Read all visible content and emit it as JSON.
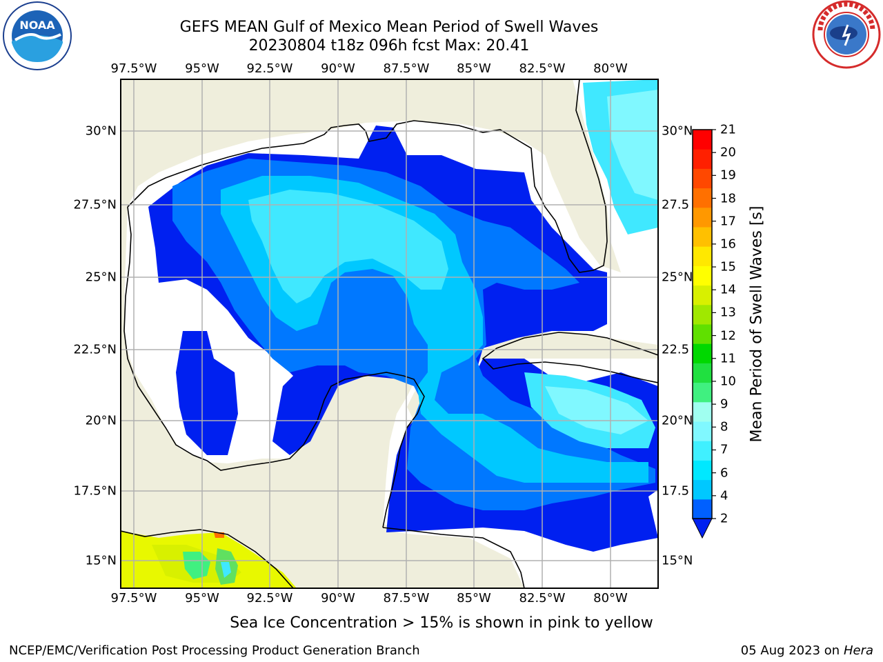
{
  "title_line1": "GEFS MEAN Gulf of Mexico Mean Period of Swell Waves",
  "title_line2": "20230804 t18z 096h fcst   Max: 20.41",
  "note": "Sea Ice Concentration > 15% is shown in pink to yellow",
  "footer_left": "NCEP/EMC/Verification Post Processing Product Generation Branch",
  "footer_date": "05 Aug 2023 on",
  "footer_machine": "Hera",
  "logos": {
    "left": {
      "icon": "noaa-logo",
      "text": "NOAA"
    },
    "right": {
      "icon": "national-weather-service-logo"
    }
  },
  "map": {
    "lon_labels": [
      "97.5°W",
      "95°W",
      "92.5°W",
      "90°W",
      "87.5°W",
      "85°W",
      "82.5°W",
      "80°W"
    ],
    "lat_labels_left": [
      "30°N",
      "27.5°N",
      "25°N",
      "22.5°N",
      "20°N",
      "17.5°N",
      "15°N"
    ],
    "lat_labels_right": [
      "30°N",
      "27.5",
      "25°N",
      "22.5",
      "20°N",
      "17.5",
      "15°N"
    ],
    "colors": {
      "land": "#efeedc",
      "ocean_missing": "#ffffff",
      "grid": "#b0b0b0",
      "coast": "#000000"
    }
  },
  "colorbar": {
    "label": "Mean Period of Swell Waves [s]",
    "ticks": [
      "21",
      "20",
      "19",
      "18",
      "17",
      "16",
      "15",
      "14",
      "13",
      "12",
      "11",
      "10",
      "9",
      "8",
      "7",
      "6",
      "4",
      "2"
    ],
    "colors": [
      "#0060ff",
      "#00c8ff",
      "#00e8ff",
      "#40f0ff",
      "#80f8ff",
      "#a0fff0",
      "#40f080",
      "#20e040",
      "#00d800",
      "#60e000",
      "#a0e800",
      "#d8f000",
      "#ffff00",
      "#ffe800",
      "#ffc000",
      "#ff9800",
      "#ff7000",
      "#ff4800",
      "#ff2000",
      "#ff0000"
    ],
    "extend_color": "#0020f0"
  },
  "chart_data": {
    "type": "heatmap",
    "variable": "Mean Period of Swell Waves [s]",
    "max": 20.41,
    "scale_levels": [
      2,
      4,
      6,
      7,
      8,
      9,
      10,
      11,
      12,
      13,
      14,
      15,
      16,
      17,
      18,
      19,
      20,
      21
    ],
    "lon_range": [
      "97.5°W",
      "80°W"
    ],
    "lat_range": [
      "15°N",
      "30°N"
    ]
  }
}
